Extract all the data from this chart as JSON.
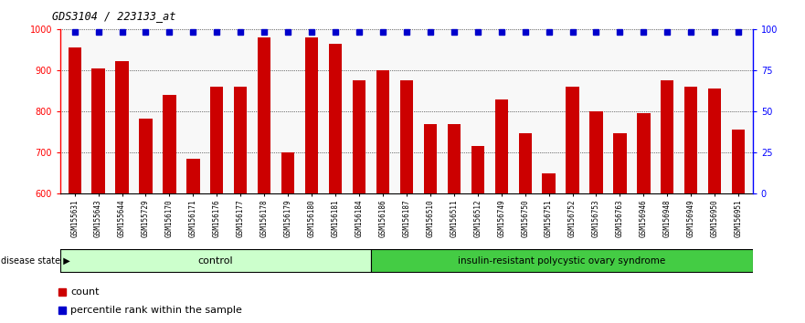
{
  "title": "GDS3104 / 223133_at",
  "samples": [
    "GSM155631",
    "GSM155643",
    "GSM155644",
    "GSM155729",
    "GSM156170",
    "GSM156171",
    "GSM156176",
    "GSM156177",
    "GSM156178",
    "GSM156179",
    "GSM156180",
    "GSM156181",
    "GSM156184",
    "GSM156186",
    "GSM156187",
    "GSM156510",
    "GSM156511",
    "GSM156512",
    "GSM156749",
    "GSM156750",
    "GSM156751",
    "GSM156752",
    "GSM156753",
    "GSM156763",
    "GSM156946",
    "GSM156948",
    "GSM156949",
    "GSM156950",
    "GSM156951"
  ],
  "counts": [
    955,
    905,
    922,
    782,
    840,
    685,
    860,
    860,
    980,
    700,
    980,
    965,
    875,
    900,
    875,
    770,
    770,
    715,
    830,
    748,
    650,
    860,
    800,
    748,
    795,
    875,
    860,
    855,
    755
  ],
  "percentile_ranks": [
    98,
    98,
    98,
    98,
    98,
    98,
    98,
    98,
    98,
    98,
    98,
    98,
    98,
    98,
    98,
    98,
    98,
    98,
    98,
    98,
    98,
    98,
    98,
    98,
    98,
    98,
    98,
    98,
    98
  ],
  "control_count": 13,
  "disease_count": 16,
  "control_label": "control",
  "disease_label": "insulin-resistant polycystic ovary syndrome",
  "disease_state_label": "disease state",
  "bar_color": "#cc0000",
  "dot_color": "#0000cc",
  "ylim": [
    600,
    1000
  ],
  "yticks": [
    600,
    700,
    800,
    900,
    1000
  ],
  "right_yticks": [
    0,
    25,
    50,
    75,
    100
  ],
  "right_ylim": [
    0,
    100
  ],
  "control_bg": "#ccffcc",
  "disease_bg": "#44cc44",
  "legend_count_label": "count",
  "legend_pct_label": "percentile rank within the sample",
  "bg_color": "#ffffff",
  "plot_bg": "#f8f8f8"
}
